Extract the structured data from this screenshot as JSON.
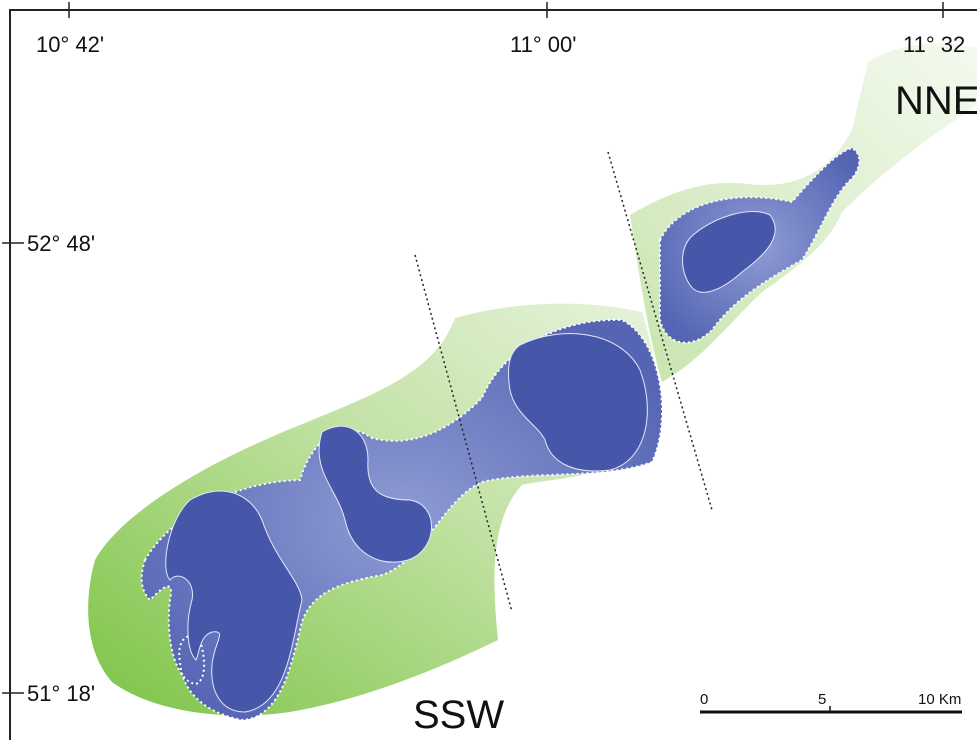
{
  "longitude_labels": [
    "10° 42'",
    "11° 00'",
    "11° 32"
  ],
  "latitude_labels": [
    "52° 48'",
    "51° 18'"
  ],
  "direction_labels": {
    "northeast": "NNE",
    "southwest": "SSW"
  },
  "scale_bar": {
    "labels": [
      "0",
      "5",
      "10 Km"
    ]
  }
}
